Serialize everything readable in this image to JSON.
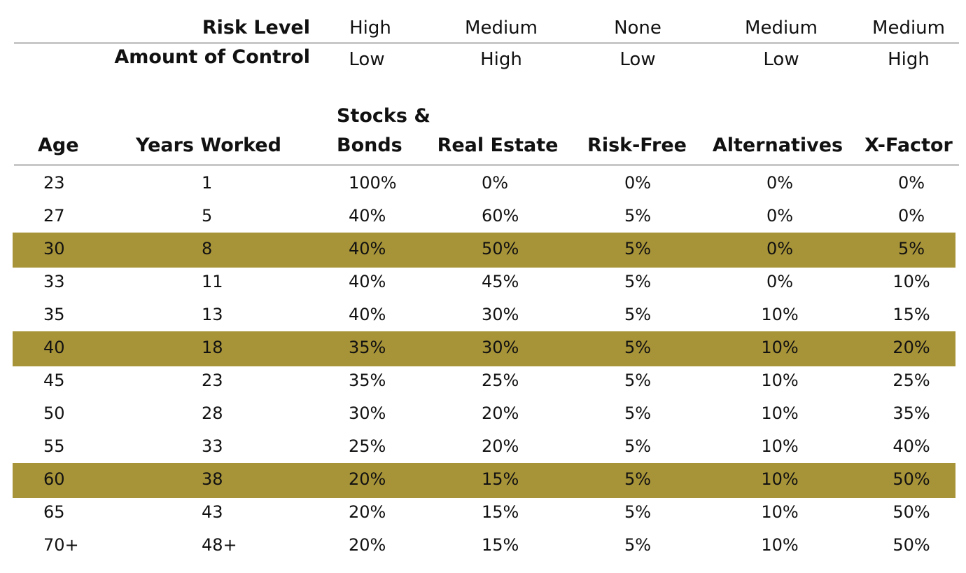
{
  "meta_rows": [
    {
      "label": "Risk Level",
      "values": [
        "High",
        "Medium",
        "None",
        "Medium",
        "Medium"
      ]
    },
    {
      "label": "Amount of Control",
      "values": [
        "Low",
        "High",
        "Low",
        "Low",
        "High"
      ]
    }
  ],
  "columns": {
    "age": "Age",
    "years_worked": "Years Worked",
    "stocks_line1": "Stocks &",
    "stocks_line2": "Bonds",
    "real_estate": "Real Estate",
    "risk_free": "Risk-Free",
    "alternatives": "Alternatives",
    "x_factor": "X-Factor"
  },
  "highlight_color": "#a89438",
  "rule_color": "#c8c8c8",
  "rows": [
    {
      "age": "23",
      "years": "1",
      "stocks": "100%",
      "real_estate": "0%",
      "risk_free": "0%",
      "alternatives": "0%",
      "x_factor": "0%",
      "highlighted": false
    },
    {
      "age": "27",
      "years": "5",
      "stocks": "40%",
      "real_estate": "60%",
      "risk_free": "5%",
      "alternatives": "0%",
      "x_factor": "0%",
      "highlighted": false
    },
    {
      "age": "30",
      "years": "8",
      "stocks": "40%",
      "real_estate": "50%",
      "risk_free": "5%",
      "alternatives": "0%",
      "x_factor": "5%",
      "highlighted": true
    },
    {
      "age": "33",
      "years": "11",
      "stocks": "40%",
      "real_estate": "45%",
      "risk_free": "5%",
      "alternatives": "0%",
      "x_factor": "10%",
      "highlighted": false
    },
    {
      "age": "35",
      "years": "13",
      "stocks": "40%",
      "real_estate": "30%",
      "risk_free": "5%",
      "alternatives": "10%",
      "x_factor": "15%",
      "highlighted": false
    },
    {
      "age": "40",
      "years": "18",
      "stocks": "35%",
      "real_estate": "30%",
      "risk_free": "5%",
      "alternatives": "10%",
      "x_factor": "20%",
      "highlighted": true
    },
    {
      "age": "45",
      "years": "23",
      "stocks": "35%",
      "real_estate": "25%",
      "risk_free": "5%",
      "alternatives": "10%",
      "x_factor": "25%",
      "highlighted": false
    },
    {
      "age": "50",
      "years": "28",
      "stocks": "30%",
      "real_estate": "20%",
      "risk_free": "5%",
      "alternatives": "10%",
      "x_factor": "35%",
      "highlighted": false
    },
    {
      "age": "55",
      "years": "33",
      "stocks": "25%",
      "real_estate": "20%",
      "risk_free": "5%",
      "alternatives": "10%",
      "x_factor": "40%",
      "highlighted": false
    },
    {
      "age": "60",
      "years": "38",
      "stocks": "20%",
      "real_estate": "15%",
      "risk_free": "5%",
      "alternatives": "10%",
      "x_factor": "50%",
      "highlighted": true
    },
    {
      "age": "65",
      "years": "43",
      "stocks": "20%",
      "real_estate": "15%",
      "risk_free": "5%",
      "alternatives": "10%",
      "x_factor": "50%",
      "highlighted": false
    },
    {
      "age": "70+",
      "years": "48+",
      "stocks": "20%",
      "real_estate": "15%",
      "risk_free": "5%",
      "alternatives": "10%",
      "x_factor": "50%",
      "highlighted": false
    }
  ]
}
